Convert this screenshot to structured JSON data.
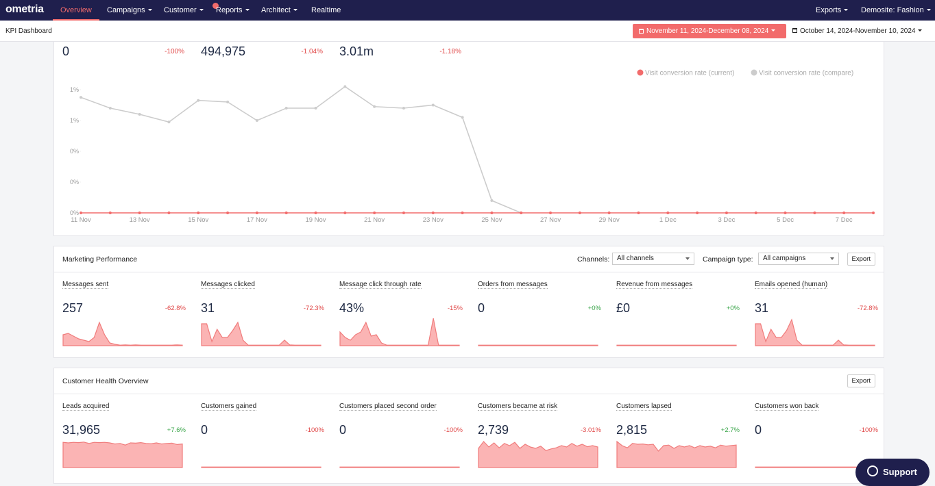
{
  "nav": {
    "logo": "ometria",
    "items": [
      "Overview",
      "Campaigns",
      "Customer",
      "Reports",
      "Architect",
      "Realtime"
    ],
    "right": [
      "Exports",
      "Demosite: Fashion"
    ]
  },
  "header": {
    "title": "KPI Dashboard",
    "date_current": "November 11, 2024-December 08, 2024",
    "date_compare": "October 14, 2024-November 10, 2024"
  },
  "top_kpis": [
    {
      "value": "0",
      "change": "-100%"
    },
    {
      "value": "494,975",
      "change": "-1.04%"
    },
    {
      "value": "3.01m",
      "change": "-1.18%"
    }
  ],
  "chart_data": {
    "type": "line",
    "categories": [
      "11 Nov",
      null,
      "13 Nov",
      null,
      "15 Nov",
      null,
      "17 Nov",
      null,
      "19 Nov",
      null,
      "21 Nov",
      null,
      "23 Nov",
      null,
      "25 Nov",
      null,
      "27 Nov",
      null,
      "29 Nov",
      null,
      "1 Dec",
      null,
      "3 Dec",
      null,
      "5 Dec",
      null,
      "7 Dec",
      null
    ],
    "series": [
      {
        "name": "Visit conversion rate (current)",
        "color": "#f26b6b",
        "values": [
          0,
          0,
          0,
          0,
          0,
          0,
          0,
          0,
          0,
          0,
          0,
          0,
          0,
          0,
          0,
          0,
          0,
          0,
          0,
          0,
          0,
          0,
          0,
          0,
          0,
          0,
          0,
          0
        ]
      },
      {
        "name": "Visit conversion rate (compare)",
        "color": "#cccccc",
        "values": [
          0.75,
          0.68,
          0.64,
          0.59,
          0.73,
          0.72,
          0.6,
          0.68,
          0.68,
          0.82,
          0.69,
          0.68,
          0.7,
          0.62,
          0.08,
          0,
          null,
          null,
          null,
          null,
          null,
          null,
          null,
          null,
          null,
          null,
          null,
          null
        ]
      }
    ],
    "ylim": [
      0,
      0.85
    ],
    "yticks": [
      {
        "value": 0.8,
        "label": "1%"
      },
      {
        "value": 0.6,
        "label": "1%"
      },
      {
        "value": 0.4,
        "label": "0%"
      },
      {
        "value": 0.2,
        "label": "0%"
      },
      {
        "value": 0,
        "label": "0%"
      }
    ]
  },
  "marketing": {
    "title": "Marketing Performance",
    "channels_label": "Channels:",
    "channels_value": "All channels",
    "campaign_label": "Campaign type:",
    "campaign_value": "All campaigns",
    "export": "Export",
    "cards": [
      {
        "title": "Messages sent",
        "value": "257",
        "change": "-62.8%",
        "spark": [
          40,
          45,
          35,
          25,
          20,
          15,
          30,
          85,
          40,
          10,
          5,
          2,
          3,
          2,
          3,
          2,
          2,
          2,
          2,
          2,
          2,
          2,
          3,
          2
        ]
      },
      {
        "title": "Messages clicked",
        "value": "31",
        "change": "-72.3%",
        "spark": [
          80,
          80,
          15,
          60,
          30,
          30,
          55,
          85,
          20,
          2,
          2,
          2,
          2,
          2,
          2,
          2,
          20,
          3,
          2,
          2,
          2,
          2,
          2,
          2
        ]
      },
      {
        "title": "Message click through rate",
        "value": "43%",
        "change": "-15%",
        "spark": [
          50,
          30,
          20,
          40,
          50,
          85,
          35,
          40,
          10,
          2,
          2,
          2,
          2,
          2,
          2,
          2,
          2,
          2,
          100,
          2,
          2,
          2,
          2,
          2
        ]
      },
      {
        "title": "Orders from messages",
        "value": "0",
        "change": "+0%",
        "spark": [
          2,
          2,
          2,
          2,
          2,
          2,
          2,
          2,
          2,
          2,
          2,
          2,
          2,
          2,
          2,
          2,
          2,
          2,
          2,
          2,
          2,
          2,
          2,
          2
        ]
      },
      {
        "title": "Revenue from messages",
        "value": "£0",
        "change": "+0%",
        "spark": [
          2,
          2,
          2,
          2,
          2,
          2,
          2,
          2,
          2,
          2,
          2,
          2,
          2,
          2,
          2,
          2,
          2,
          2,
          2,
          2,
          2,
          2,
          2,
          2
        ]
      },
      {
        "title": "Emails opened (human)",
        "value": "31",
        "change": "-72.8%",
        "spark": [
          80,
          80,
          15,
          60,
          30,
          30,
          55,
          95,
          20,
          2,
          2,
          2,
          2,
          2,
          2,
          2,
          20,
          3,
          2,
          2,
          2,
          2,
          2,
          2
        ]
      }
    ]
  },
  "customer_health": {
    "title": "Customer Health Overview",
    "export": "Export",
    "cards": [
      {
        "title": "Leads acquired",
        "value": "31,965",
        "change": "+7.6%",
        "spark": [
          92,
          90,
          92,
          91,
          93,
          88,
          92,
          91,
          92,
          90,
          86,
          88,
          82,
          90,
          89,
          91,
          88,
          87,
          90,
          86,
          88,
          89,
          84,
          86
        ]
      },
      {
        "title": "Customers gained",
        "value": "0",
        "change": "-100%",
        "spark": [
          2,
          2,
          2,
          2,
          2,
          2,
          2,
          2,
          2,
          2,
          2,
          2,
          2,
          2,
          2,
          2,
          2,
          2,
          2,
          2,
          2,
          2,
          2,
          2
        ]
      },
      {
        "title": "Customers placed second order",
        "value": "0",
        "change": "-100%",
        "spark": [
          2,
          2,
          2,
          2,
          2,
          2,
          2,
          2,
          2,
          2,
          2,
          2,
          2,
          2,
          2,
          2,
          2,
          2,
          2,
          2,
          2,
          2,
          2,
          2
        ]
      },
      {
        "title": "Customers became at risk",
        "value": "2,739",
        "change": "-3.01%",
        "spark": [
          70,
          95,
          75,
          90,
          72,
          88,
          80,
          92,
          70,
          85,
          75,
          70,
          78,
          62,
          68,
          72,
          80,
          75,
          88,
          78,
          85,
          76,
          80,
          75
        ]
      },
      {
        "title": "Customers lapsed",
        "value": "2,815",
        "change": "+2.7%",
        "spark": [
          95,
          80,
          72,
          88,
          85,
          86,
          83,
          85,
          60,
          80,
          82,
          70,
          80,
          75,
          80,
          72,
          80,
          75,
          78,
          72,
          82,
          78,
          80,
          82
        ]
      },
      {
        "title": "Customers won back",
        "value": "0",
        "change": "-100%",
        "spark": [
          2,
          2,
          2,
          2,
          2,
          2,
          2,
          2,
          2,
          2,
          2,
          2,
          2,
          2,
          2,
          2,
          2,
          2,
          2,
          2,
          2,
          2,
          2,
          2
        ]
      }
    ]
  },
  "support": "Support"
}
